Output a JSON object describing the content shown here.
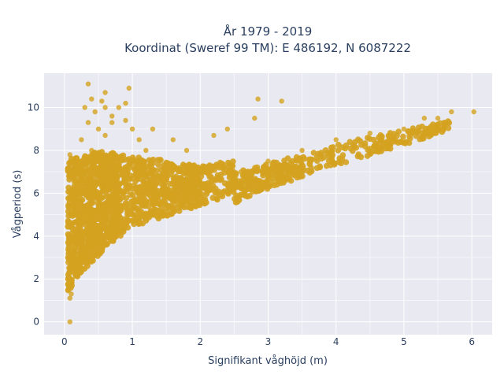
{
  "chart_data": {
    "type": "scatter",
    "title_lines": [
      "År 1979 - 2019",
      "Koordinat (Sweref 99 TM): E 486192, N 6087222"
    ],
    "xlabel": "Signifikant våghöjd (m)",
    "ylabel": "Vågperiod (s)",
    "xlim": [
      -0.3,
      6.3
    ],
    "ylim": [
      -0.6,
      11.6
    ],
    "xticks": [
      0,
      1,
      2,
      3,
      4,
      5,
      6
    ],
    "yticks": [
      0,
      2,
      4,
      6,
      8,
      10
    ],
    "grid": true,
    "legend": "none",
    "marker_color": "#D4A21F",
    "plot_background": "#E9E9F1",
    "series": [
      {
        "points": [
          [
            0.08,
            0.0
          ],
          [
            0.08,
            1.1
          ],
          [
            0.1,
            1.3
          ],
          [
            0.05,
            1.5
          ],
          [
            0.06,
            2.0
          ],
          [
            0.07,
            2.5
          ],
          [
            0.05,
            3.0
          ],
          [
            0.1,
            3.4
          ],
          [
            0.08,
            4.0
          ],
          [
            0.1,
            5.0
          ],
          [
            0.08,
            6.0
          ],
          [
            0.09,
            7.0
          ],
          [
            0.08,
            7.8
          ],
          [
            0.12,
            7.5
          ],
          [
            0.2,
            3.0
          ],
          [
            0.2,
            4.5
          ],
          [
            0.2,
            6.5
          ],
          [
            0.25,
            8.5
          ],
          [
            0.3,
            2.5
          ],
          [
            0.3,
            5.0
          ],
          [
            0.3,
            7.0
          ],
          [
            0.35,
            9.3
          ],
          [
            0.4,
            3.0
          ],
          [
            0.4,
            6.0
          ],
          [
            0.4,
            8.0
          ],
          [
            0.45,
            9.8
          ],
          [
            0.5,
            3.5
          ],
          [
            0.5,
            7.0
          ],
          [
            0.5,
            9.0
          ],
          [
            0.55,
            10.3
          ],
          [
            0.6,
            10.0
          ],
          [
            0.6,
            8.7
          ],
          [
            0.7,
            4.0
          ],
          [
            0.7,
            9.3
          ],
          [
            0.8,
            10.0
          ],
          [
            0.8,
            7.5
          ],
          [
            0.9,
            10.2
          ],
          [
            0.95,
            10.9
          ],
          [
            1.0,
            5.0
          ],
          [
            1.0,
            9.0
          ],
          [
            1.1,
            8.5
          ],
          [
            1.2,
            5.5
          ],
          [
            1.2,
            8.0
          ],
          [
            1.3,
            9.0
          ],
          [
            1.5,
            6.0
          ],
          [
            1.6,
            8.5
          ],
          [
            1.8,
            8.0
          ],
          [
            2.0,
            6.5
          ],
          [
            2.2,
            8.7
          ],
          [
            2.4,
            9.0
          ],
          [
            2.6,
            7.0
          ],
          [
            2.8,
            9.5
          ],
          [
            2.85,
            10.4
          ],
          [
            3.0,
            7.5
          ],
          [
            3.2,
            10.3
          ],
          [
            3.5,
            8.0
          ],
          [
            4.0,
            8.5
          ],
          [
            4.5,
            8.8
          ],
          [
            5.0,
            9.0
          ],
          [
            5.3,
            9.5
          ],
          [
            5.5,
            9.5
          ],
          [
            5.7,
            9.8
          ],
          [
            6.03,
            9.8
          ],
          [
            0.35,
            11.1
          ],
          [
            0.6,
            10.7
          ],
          [
            0.3,
            10.0
          ],
          [
            0.4,
            10.4
          ],
          [
            0.7,
            9.6
          ],
          [
            0.9,
            9.4
          ]
        ]
      }
    ]
  }
}
